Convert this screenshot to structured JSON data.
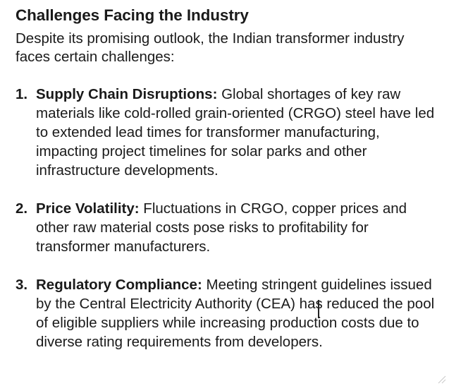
{
  "document": {
    "title": "Challenges Facing the Industry",
    "intro": "Despite its promising outlook, the Indian transformer industry faces certain challenges:",
    "items": [
      {
        "number": "1.",
        "term": "Supply Chain Disruptions:",
        "text": "Global shortages of key raw materials like cold-rolled grain-oriented (CRGO) steel have led to extended lead times for transformer manufacturing, impacting project timelines for solar parks and other infrastructure developments."
      },
      {
        "number": "2.",
        "term": "Price Volatility:",
        "text": "Fluctuations in CRGO, copper prices and other raw material costs pose risks to profitability for transformer manufacturers."
      },
      {
        "number": "3.",
        "term": "Regulatory Compliance:",
        "text": "Meeting stringent guidelines issued by the Central Electricity Authority (CEA) has reduced the pool of eligible suppliers while increasing production costs due to diverse rating requirements from developers."
      }
    ]
  },
  "icons": {
    "cursor": "text-cursor-icon",
    "grip": "resize-grip-icon"
  }
}
